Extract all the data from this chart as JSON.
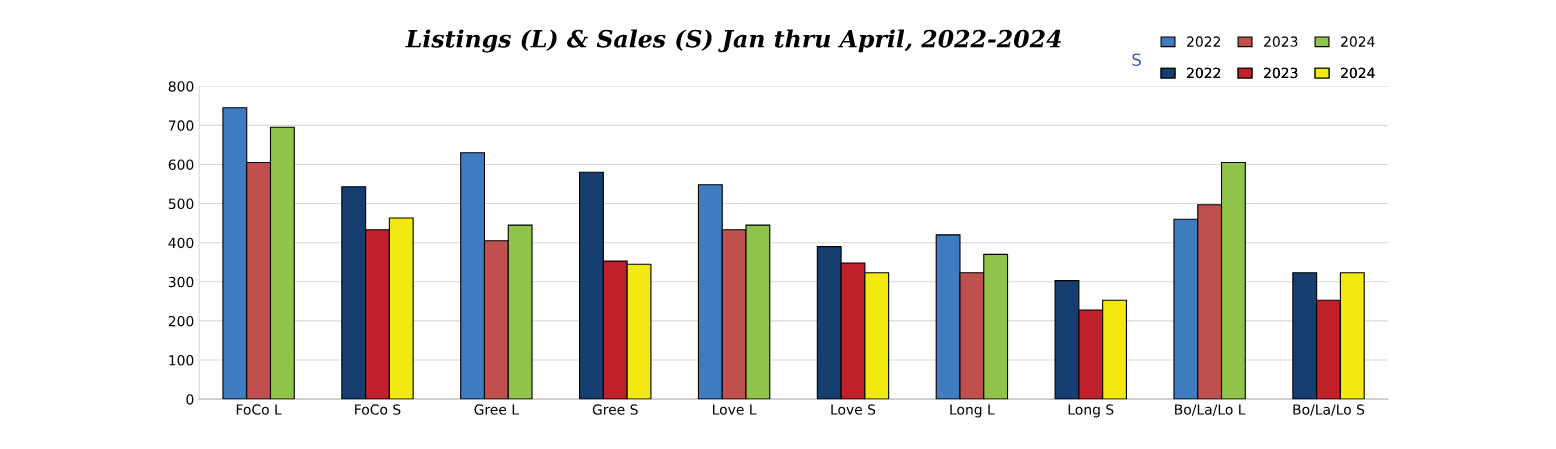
{
  "chart_data": {
    "type": "bar",
    "title": "Listings (L) & Sales (S) Jan thru April, 2022-2024",
    "categories": [
      "FoCo L",
      "FoCo S",
      "Gree L",
      "Gree S",
      "Love L",
      "Love S",
      "Long L",
      "Long S",
      "Bo/La/Lo L",
      "Bo/La/Lo S"
    ],
    "series": [
      {
        "name": "2022",
        "color": "#3f7bbf",
        "values": [
          745,
          null,
          630,
          null,
          548,
          null,
          420,
          null,
          460,
          null
        ]
      },
      {
        "name": "2023",
        "color": "#c0504d",
        "values": [
          605,
          null,
          405,
          null,
          433,
          null,
          323,
          null,
          497,
          null
        ]
      },
      {
        "name": "2024",
        "color": "#8fc34a",
        "values": [
          695,
          null,
          445,
          null,
          445,
          null,
          370,
          null,
          605,
          null
        ]
      },
      {
        "name": "2022",
        "color": "#163e70",
        "values": [
          null,
          543,
          null,
          580,
          null,
          390,
          null,
          303,
          null,
          323
        ]
      },
      {
        "name": "2023",
        "color": "#c0202a",
        "values": [
          null,
          433,
          null,
          353,
          null,
          348,
          null,
          228,
          null,
          253
        ]
      },
      {
        "name": "2024",
        "color": "#f2e812",
        "values": [
          null,
          463,
          null,
          345,
          null,
          323,
          null,
          253,
          null,
          323
        ]
      }
    ],
    "annotations": [
      "S"
    ],
    "ylim": [
      0,
      800
    ],
    "yticks": [
      0,
      100,
      200,
      300,
      400,
      500,
      600,
      700,
      800
    ],
    "grid": "y",
    "legend": "top right"
  }
}
